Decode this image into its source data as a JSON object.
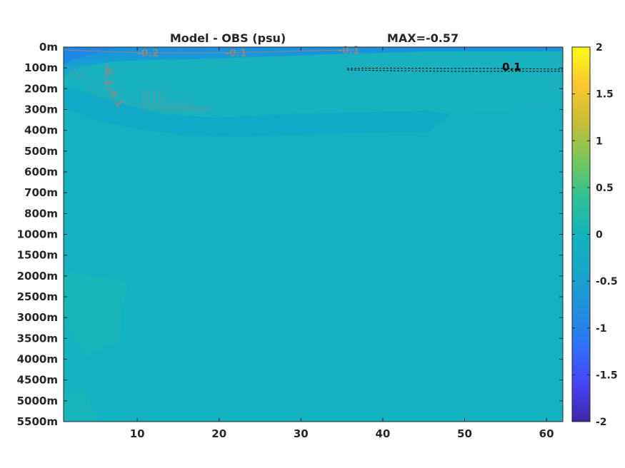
{
  "chart_data": {
    "type": "heatmap",
    "title": "Model - OBS (psu)",
    "max_label": "MAX=-0.57",
    "xlabel": "",
    "ylabel": "",
    "x_range": [
      1,
      62
    ],
    "x_ticks": [
      10,
      20,
      30,
      40,
      50,
      60
    ],
    "y_tick_labels": [
      "0m",
      "100m",
      "200m",
      "300m",
      "400m",
      "500m",
      "600m",
      "700m",
      "800m",
      "1000m",
      "1500m",
      "2000m",
      "2500m",
      "3000m",
      "3500m",
      "4000m",
      "4500m",
      "5000m",
      "5500m"
    ],
    "colorbar": {
      "range": [
        -2,
        2
      ],
      "ticks": [
        "2",
        "1.5",
        "1",
        "0.5",
        "0",
        "-0.5",
        "-1",
        "-1.5",
        "-2"
      ],
      "colormap": "parula",
      "colors": [
        "#3e26a8",
        "#4743f5",
        "#2f70f7",
        "#1f91de",
        "#17a6c8",
        "#1fbaa4",
        "#4bc77a",
        "#a1c540",
        "#e3b534",
        "#fdd22b",
        "#f9fb15"
      ]
    },
    "background_value": 0.0,
    "contours": [
      {
        "level": -0.2,
        "label": "-0.2",
        "color": "#8a8a8a"
      },
      {
        "level": -0.1,
        "label": "-0.1",
        "color": "#8a8a8a"
      },
      {
        "level": -0.1,
        "label": "-0.1",
        "color": "#8a8a8a"
      },
      {
        "level": -0.1,
        "label": "-0.1",
        "color": "#8a8a8a"
      },
      {
        "level": -0.1,
        "label": "-0.1",
        "color": "#8a8a8a"
      },
      {
        "level": 0.1,
        "label": "0.1",
        "color": "#000000"
      }
    ],
    "grid": false
  }
}
